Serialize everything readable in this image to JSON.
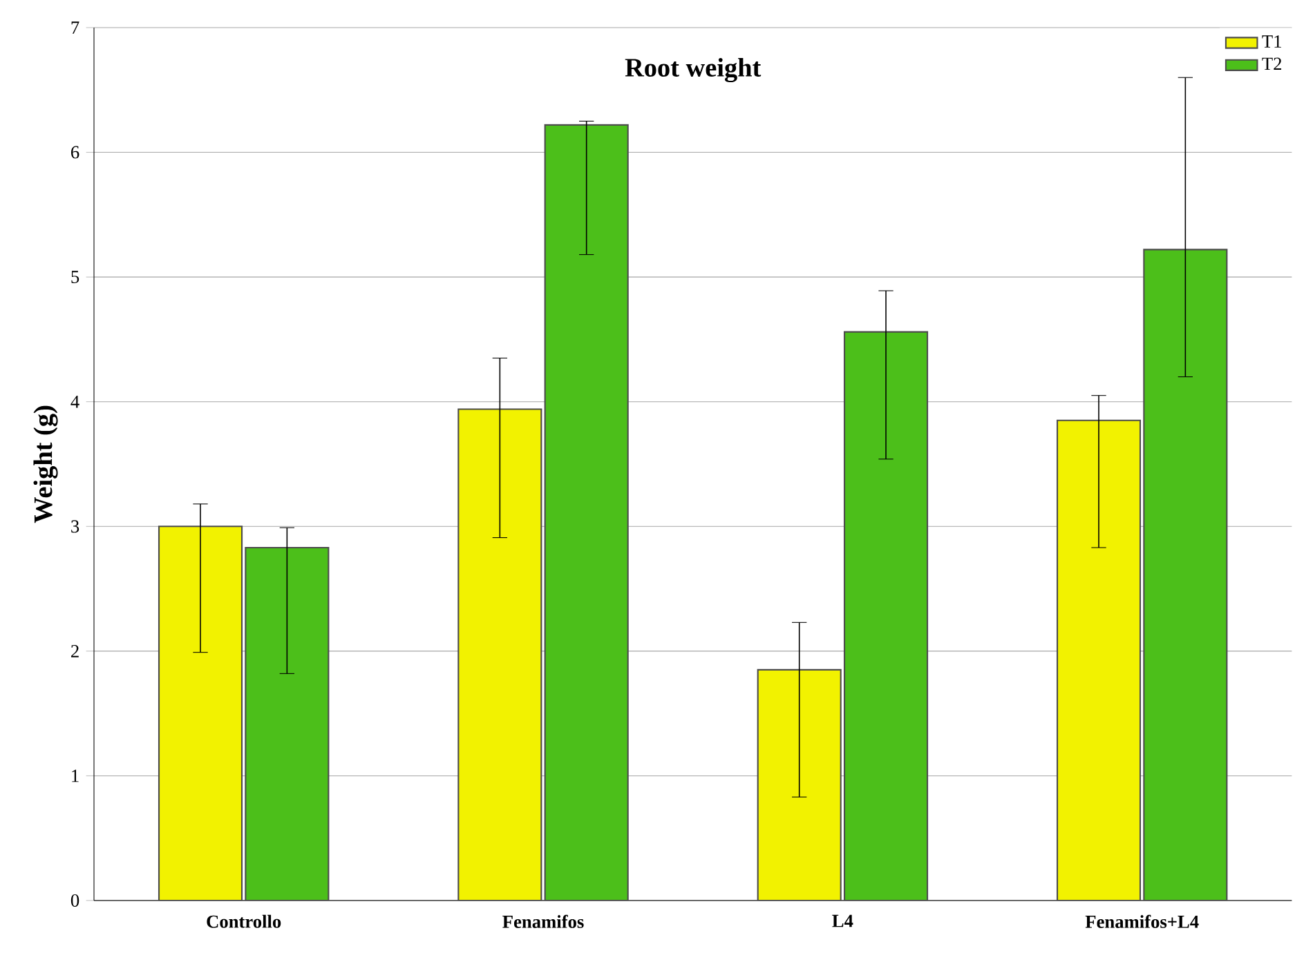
{
  "chart_data": {
    "type": "bar",
    "title": "Root weight",
    "ylabel": "Weight (g)",
    "categories": [
      "Controllo",
      "Fenamifos",
      "L4",
      "Fenamifos+L4"
    ],
    "series": [
      {
        "name": "T1",
        "color": "#f2f200",
        "values": [
          3.0,
          3.94,
          1.85,
          3.85
        ],
        "errors": [
          [
            1.99,
            3.18
          ],
          [
            2.91,
            4.35
          ],
          [
            0.83,
            2.23
          ],
          [
            2.83,
            4.05
          ]
        ]
      },
      {
        "name": "T2",
        "color": "#4cbf1a",
        "values": [
          2.83,
          6.22,
          4.56,
          5.22
        ],
        "errors": [
          [
            1.82,
            2.99
          ],
          [
            5.18,
            6.25
          ],
          [
            3.54,
            4.89
          ],
          [
            4.2,
            6.6
          ]
        ]
      }
    ],
    "ylim": [
      0,
      7
    ],
    "yticks": [
      0,
      1,
      2,
      3,
      4,
      5,
      6,
      7
    ],
    "grid": "y",
    "legend": "top right"
  }
}
